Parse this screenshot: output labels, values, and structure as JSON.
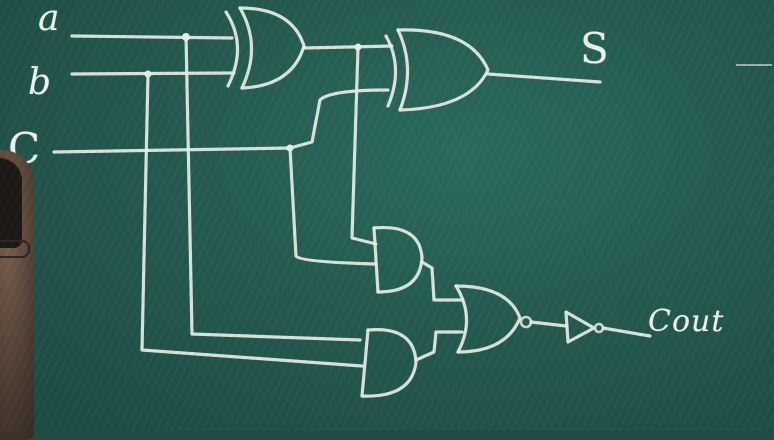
{
  "image": {
    "labels": {
      "input_a": "a",
      "input_b": "b",
      "input_c": "C",
      "output_s": "S",
      "output_cout": "Cout"
    },
    "colors": {
      "board": "#245a50",
      "chalk": "#e9efe6"
    }
  }
}
